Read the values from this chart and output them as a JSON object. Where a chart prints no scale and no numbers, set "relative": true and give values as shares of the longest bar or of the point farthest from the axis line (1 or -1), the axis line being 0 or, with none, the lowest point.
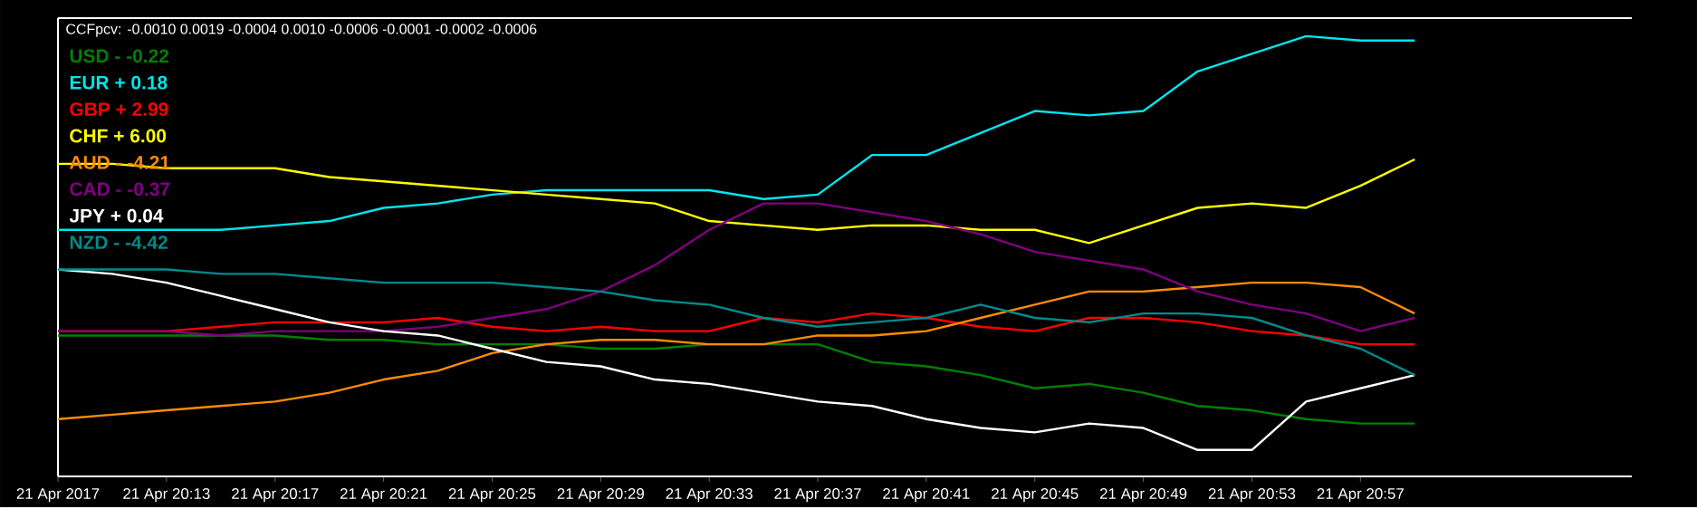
{
  "chart_data": {
    "type": "line",
    "title": "CCFpcv: -0.0010 0.0019 -0.0004 0.0010 -0.0006 -0.0001 -0.0002 -0.0006",
    "relative": true,
    "marker": "none",
    "line_style": "solid",
    "grid": false,
    "x": [
      "2017-04-21T20:09",
      "2017-04-21T20:11",
      "2017-04-21T20:13",
      "2017-04-21T20:15",
      "2017-04-21T20:17",
      "2017-04-21T20:19",
      "2017-04-21T20:21",
      "2017-04-21T20:23",
      "2017-04-21T20:25",
      "2017-04-21T20:27",
      "2017-04-21T20:29",
      "2017-04-21T20:31",
      "2017-04-21T20:33",
      "2017-04-21T20:35",
      "2017-04-21T20:37",
      "2017-04-21T20:39",
      "2017-04-21T20:41",
      "2017-04-21T20:43",
      "2017-04-21T20:45",
      "2017-04-21T20:47",
      "2017-04-21T20:49",
      "2017-04-21T20:51",
      "2017-04-21T20:53",
      "2017-04-21T20:55",
      "2017-04-21T20:57",
      "2017-04-21T20:59"
    ],
    "xlim": [
      "2017-04-21T20:09",
      "2017-04-21T21:07"
    ],
    "xticks": [
      {
        "value": "2017-04-21T20:09",
        "label": "21 Apr 2017"
      },
      {
        "value": "2017-04-21T20:13",
        "label": "21 Apr 20:13"
      },
      {
        "value": "2017-04-21T20:17",
        "label": "21 Apr 20:17"
      },
      {
        "value": "2017-04-21T20:21",
        "label": "21 Apr 20:21"
      },
      {
        "value": "2017-04-21T20:25",
        "label": "21 Apr 20:25"
      },
      {
        "value": "2017-04-21T20:29",
        "label": "21 Apr 20:29"
      },
      {
        "value": "2017-04-21T20:33",
        "label": "21 Apr 20:33"
      },
      {
        "value": "2017-04-21T20:37",
        "label": "21 Apr 20:37"
      },
      {
        "value": "2017-04-21T20:41",
        "label": "21 Apr 20:41"
      },
      {
        "value": "2017-04-21T20:45",
        "label": "21 Apr 20:45"
      },
      {
        "value": "2017-04-21T20:49",
        "label": "21 Apr 20:49"
      },
      {
        "value": "2017-04-21T20:53",
        "label": "21 Apr 20:53"
      },
      {
        "value": "2017-04-21T20:57",
        "label": "21 Apr 20:57"
      }
    ],
    "series": [
      {
        "name": "USD -  -0.22",
        "color": "#008000",
        "values": [
          0.32,
          0.32,
          0.32,
          0.32,
          0.32,
          0.31,
          0.31,
          0.3,
          0.3,
          0.3,
          0.29,
          0.29,
          0.3,
          0.3,
          0.3,
          0.26,
          0.25,
          0.23,
          0.2,
          0.21,
          0.19,
          0.16,
          0.15,
          0.13,
          0.12,
          0.12
        ]
      },
      {
        "name": "EUR +  0.18",
        "color": "#00e5ee",
        "values": [
          0.56,
          0.56,
          0.56,
          0.56,
          0.57,
          0.58,
          0.61,
          0.62,
          0.64,
          0.65,
          0.65,
          0.65,
          0.65,
          0.63,
          0.64,
          0.73,
          0.73,
          0.78,
          0.83,
          0.82,
          0.83,
          0.92,
          0.96,
          1.0,
          0.99,
          0.99
        ]
      },
      {
        "name": "GBP +  2.99",
        "color": "#ff0000",
        "values": [
          0.33,
          0.33,
          0.33,
          0.34,
          0.35,
          0.35,
          0.35,
          0.36,
          0.34,
          0.33,
          0.34,
          0.33,
          0.33,
          0.36,
          0.35,
          0.37,
          0.36,
          0.34,
          0.33,
          0.36,
          0.36,
          0.35,
          0.33,
          0.32,
          0.3,
          0.3
        ]
      },
      {
        "name": "CHF +  6.00",
        "color": "#ffff00",
        "values": [
          0.71,
          0.71,
          0.7,
          0.7,
          0.7,
          0.68,
          0.67,
          0.66,
          0.65,
          0.64,
          0.63,
          0.62,
          0.58,
          0.57,
          0.56,
          0.57,
          0.57,
          0.56,
          0.56,
          0.53,
          0.57,
          0.61,
          0.62,
          0.61,
          0.66,
          0.72
        ]
      },
      {
        "name": "AUD -  -4.21",
        "color": "#ff8c00",
        "values": [
          0.13,
          0.14,
          0.15,
          0.16,
          0.17,
          0.19,
          0.22,
          0.24,
          0.28,
          0.3,
          0.31,
          0.31,
          0.3,
          0.3,
          0.32,
          0.32,
          0.33,
          0.36,
          0.39,
          0.42,
          0.42,
          0.43,
          0.44,
          0.44,
          0.43,
          0.37
        ]
      },
      {
        "name": "CAD -  -0.37",
        "color": "#800080",
        "values": [
          0.33,
          0.33,
          0.33,
          0.32,
          0.33,
          0.33,
          0.33,
          0.34,
          0.36,
          0.38,
          0.42,
          0.48,
          0.56,
          0.62,
          0.62,
          0.6,
          0.58,
          0.55,
          0.51,
          0.49,
          0.47,
          0.42,
          0.39,
          0.37,
          0.33,
          0.36
        ]
      },
      {
        "name": "JPY +  0.04",
        "color": "#ffffff",
        "values": [
          0.47,
          0.46,
          0.44,
          0.41,
          0.38,
          0.35,
          0.33,
          0.32,
          0.29,
          0.26,
          0.25,
          0.22,
          0.21,
          0.19,
          0.17,
          0.16,
          0.13,
          0.11,
          0.1,
          0.12,
          0.11,
          0.06,
          0.06,
          0.17,
          0.2,
          0.23
        ]
      },
      {
        "name": "NZD -  -4.42",
        "color": "#008b8b",
        "values": [
          0.47,
          0.47,
          0.47,
          0.46,
          0.46,
          0.45,
          0.44,
          0.44,
          0.44,
          0.43,
          0.42,
          0.4,
          0.39,
          0.36,
          0.34,
          0.35,
          0.36,
          0.39,
          0.36,
          0.35,
          0.37,
          0.37,
          0.36,
          0.32,
          0.29,
          0.23
        ]
      }
    ]
  }
}
